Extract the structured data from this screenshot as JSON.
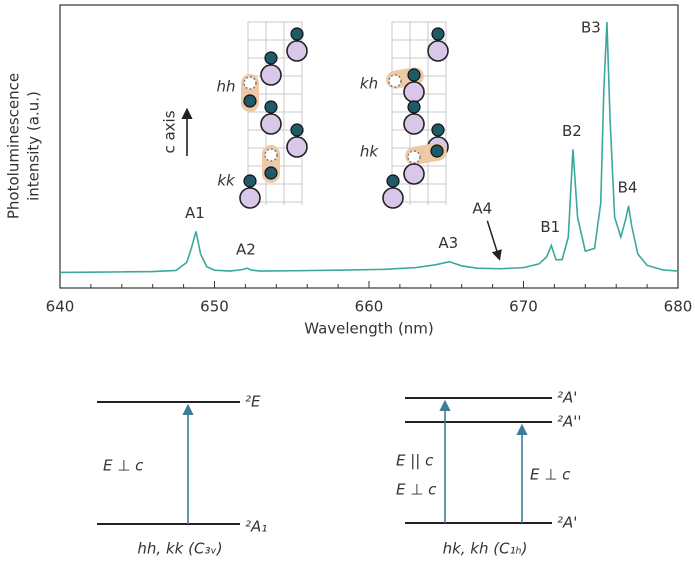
{
  "chart_data": {
    "type": "line",
    "xlabel": "Wavelength (nm)",
    "ylabel": [
      "Photoluminescence",
      "intensity (a.u.)"
    ],
    "color": "#3aa89a",
    "x": [
      640,
      642,
      644,
      646,
      647.5,
      648.2,
      648.5,
      648.8,
      649.1,
      649.5,
      650,
      651,
      651.8,
      652.1,
      652.4,
      653,
      655,
      658,
      661,
      663,
      664.3,
      665.2,
      666,
      667,
      668.5,
      670,
      671,
      671.5,
      671.8,
      672.1,
      672.5,
      672.9,
      673.2,
      673.5,
      674,
      674.6,
      675,
      675.2,
      675.4,
      675.6,
      675.9,
      676.3,
      676.6,
      676.8,
      677,
      677.4,
      678,
      679,
      680
    ],
    "values": [
      5.5,
      5.6,
      5.7,
      5.8,
      6.2,
      9,
      14,
      20,
      12,
      7.5,
      6.3,
      6,
      6.5,
      7,
      6.3,
      6,
      6.1,
      6.3,
      6.6,
      7.2,
      8.2,
      9.3,
      7.8,
      7,
      6.8,
      7.2,
      8.5,
      11,
      15,
      10,
      10,
      18,
      49,
      25,
      13,
      14,
      30,
      70,
      94,
      60,
      25,
      18,
      24,
      29,
      22,
      12,
      8,
      6.4,
      6
    ],
    "xlim": [
      640,
      680
    ],
    "xticks": [
      640,
      650,
      660,
      670,
      680
    ],
    "xminorticks": [
      642,
      644,
      646,
      648,
      652,
      654,
      656,
      658,
      662,
      664,
      666,
      668,
      672,
      674,
      676,
      678
    ],
    "ylim": [
      0,
      100
    ],
    "annotations": [
      {
        "text": "A1",
        "x": 648.8
      },
      {
        "text": "A2",
        "x": 652.1
      },
      {
        "text": "A3",
        "x": 665.2
      },
      {
        "text": "A4",
        "x": 668.5,
        "arrow": true
      },
      {
        "text": "B1",
        "x": 671.8
      },
      {
        "text": "B2",
        "x": 673.2
      },
      {
        "text": "B3",
        "x": 675.4
      },
      {
        "text": "B4",
        "x": 676.8
      }
    ]
  },
  "insets": {
    "hh": "hh",
    "kk": "kk",
    "kh": "kh",
    "hk": "hk",
    "c_axis": "c axis"
  },
  "energy_levels": {
    "left": {
      "upper": "²E",
      "lower": "²A₁",
      "transition": "E ⊥ c",
      "symmetry": "hh, kk (C₃ᵥ)"
    },
    "right": {
      "upper": "²A'",
      "middle": "²A''",
      "lower": "²A'",
      "transition_parallel": "E || c",
      "transition_perp_left": "E ⊥ c",
      "transition_perp_right": "E ⊥ c",
      "symmetry": "hk, kh (C₁ₕ)"
    }
  }
}
